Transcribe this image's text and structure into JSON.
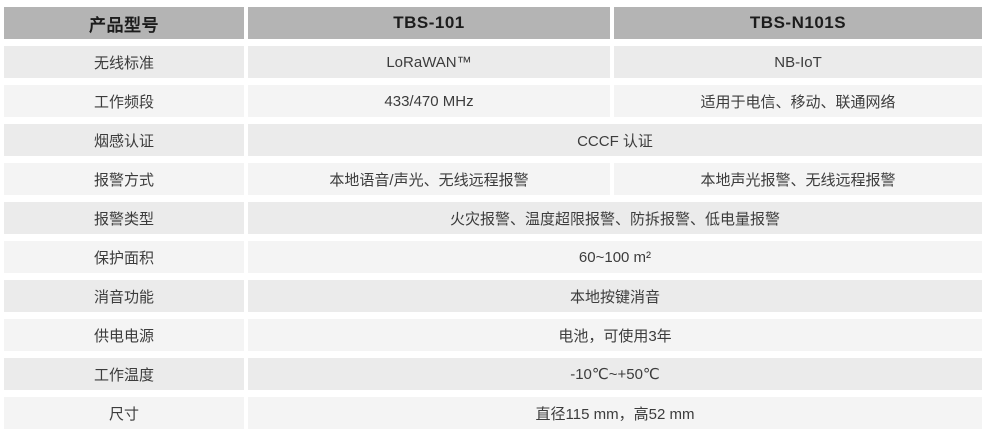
{
  "table": {
    "title_semantic": "product-model-specification-comparison",
    "header": {
      "col1": "产品型号",
      "col2": "TBS-101",
      "col3": "TBS-N101S"
    },
    "rows": [
      {
        "label": "无线标准",
        "col2": "LoRaWAN™",
        "col3": "NB-IoT"
      },
      {
        "label": "工作频段",
        "col2": "433/470 MHz",
        "col3": "适用于电信、移动、联通网络"
      },
      {
        "label": "烟感认证",
        "merged": "CCCF 认证"
      },
      {
        "label": "报警方式",
        "col2": "本地语音/声光、无线远程报警",
        "col3": "本地声光报警、无线远程报警"
      },
      {
        "label": "报警类型",
        "merged": "火灾报警、温度超限报警、防拆报警、低电量报警"
      },
      {
        "label": "保护面积",
        "merged": "60~100 m²"
      },
      {
        "label": "消音功能",
        "merged": "本地按键消音"
      },
      {
        "label": "供电电源",
        "merged": "电池，可使用3年"
      },
      {
        "label": "工作温度",
        "merged": "-10℃~+50℃"
      },
      {
        "label": "尺寸",
        "merged": "直径115 mm，高52 mm"
      }
    ],
    "colors": {
      "header_bg": "#b4b4b4",
      "header_text": "#1c1c1c",
      "row_odd_bg": "#ebebeb",
      "row_even_bg": "#f4f4f4",
      "body_text": "#3c3c3c",
      "page_bg": "#ffffff"
    }
  }
}
